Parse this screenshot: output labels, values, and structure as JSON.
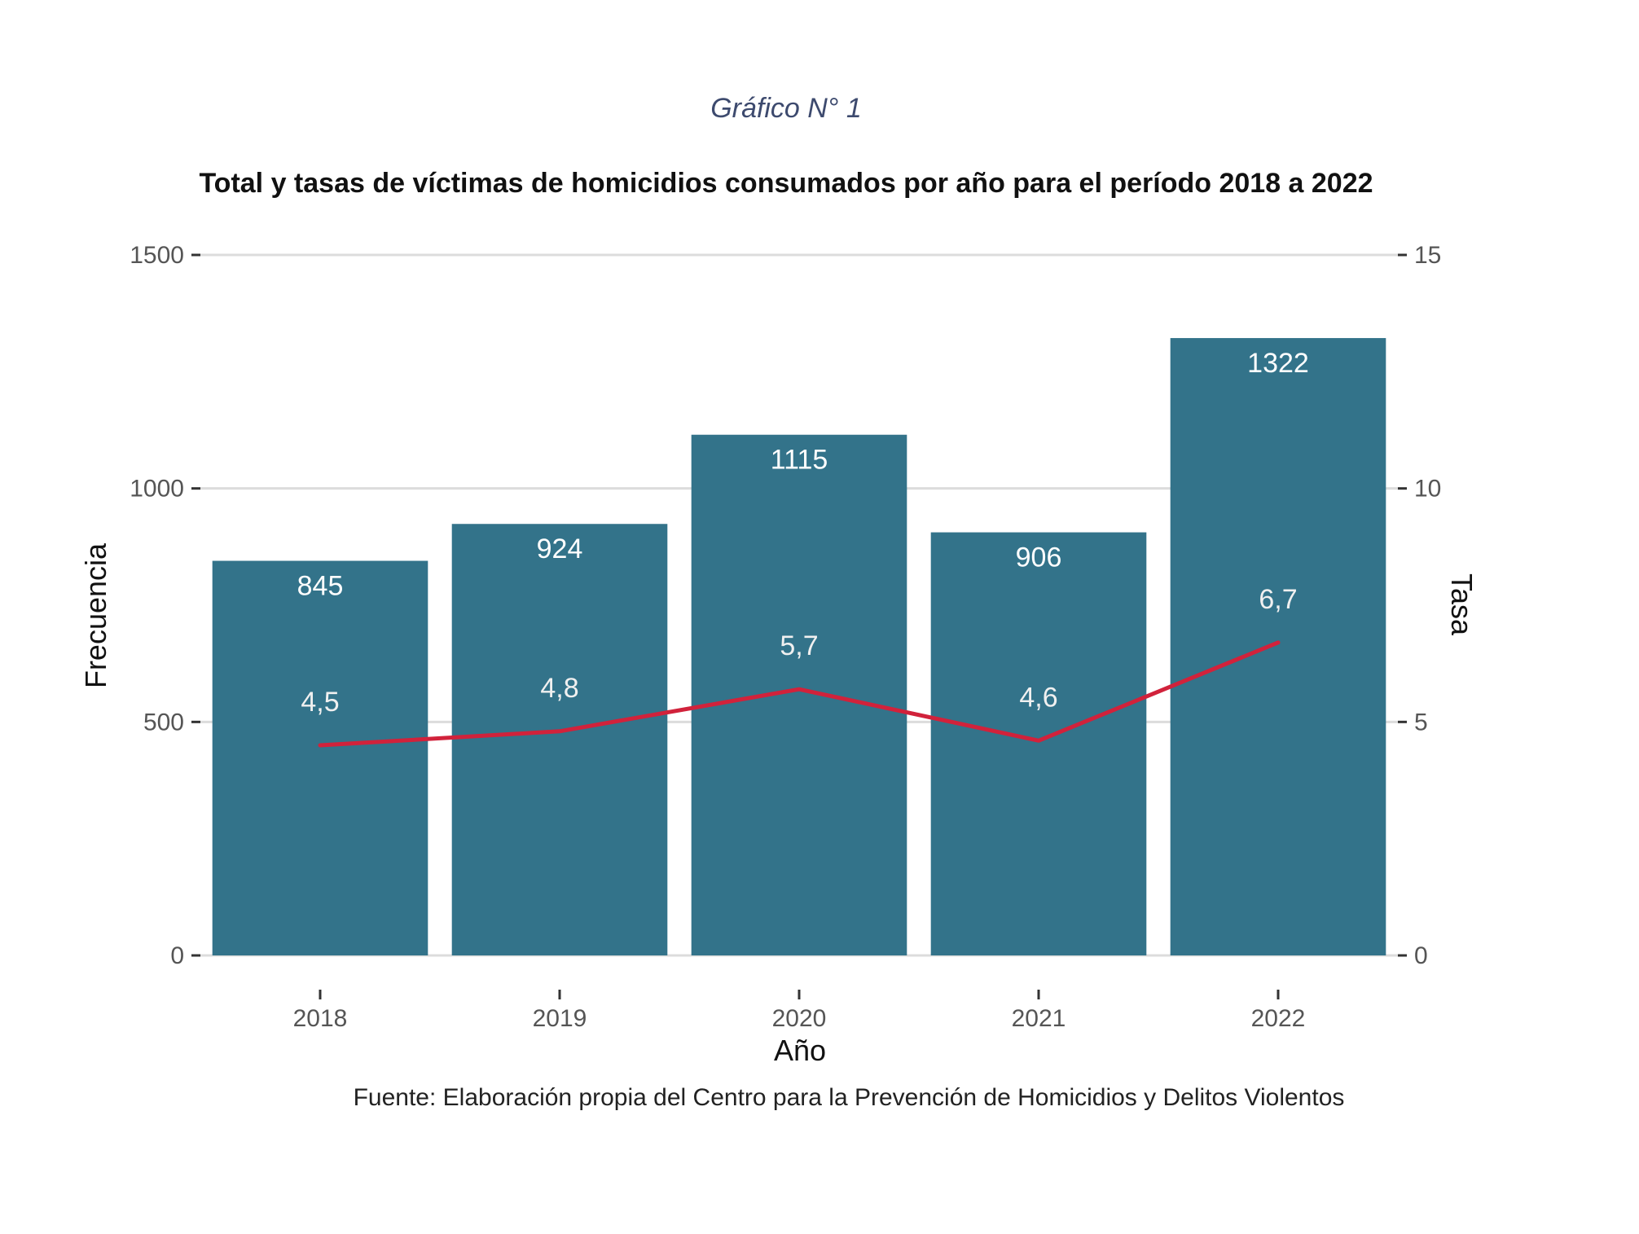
{
  "chart_data": {
    "type": "bar",
    "subtitle": "Gráfico N° 1",
    "title": "Total y tasas de víctimas de homicidios consumados por año para el período 2018 a 2022",
    "xlabel": "Año",
    "ylabel": "Frecuencia",
    "y2label": "Tasa",
    "source": "Fuente: Elaboración propia del Centro para la Prevención de Homicidios y Delitos Violentos",
    "categories": [
      "2018",
      "2019",
      "2020",
      "2021",
      "2022"
    ],
    "values": [
      845,
      924,
      1115,
      906,
      1322
    ],
    "value_labels": [
      "845",
      "924",
      "1115",
      "906",
      "1322"
    ],
    "rate": [
      4.5,
      4.8,
      5.7,
      4.6,
      6.7
    ],
    "rate_labels": [
      "4,5",
      "4,8",
      "5,7",
      "4,6",
      "6,7"
    ],
    "ylim": [
      0,
      1500
    ],
    "yticks": [
      0,
      500,
      1000,
      1500
    ],
    "ytick_labels": [
      "0",
      "500",
      "1000",
      "1500"
    ],
    "y2lim": [
      0,
      15
    ],
    "y2ticks": [
      0,
      5,
      10,
      15
    ],
    "y2tick_labels": [
      "0",
      "5",
      "10",
      "15"
    ],
    "grid": true,
    "legend": "none",
    "colors": {
      "bar": "#33738a",
      "line": "#d1223b",
      "grid": "#dcdcdc"
    }
  }
}
